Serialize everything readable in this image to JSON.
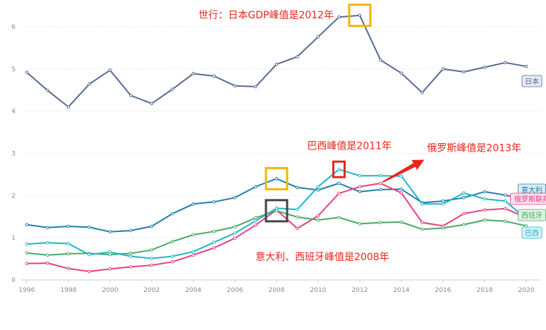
{
  "chart_data": {
    "type": "line",
    "x": [
      1996,
      1997,
      1998,
      1999,
      2000,
      2001,
      2002,
      2003,
      2004,
      2005,
      2006,
      2007,
      2008,
      2009,
      2010,
      2011,
      2012,
      2013,
      2014,
      2015,
      2016,
      2017,
      2018,
      2019,
      2020
    ],
    "x_tick_labels": [
      "1996",
      "1998",
      "2000",
      "2002",
      "2004",
      "2006",
      "2008",
      "2010",
      "2012",
      "2014",
      "2016",
      "2018",
      "2020"
    ],
    "y_tick_labels": [
      "0",
      "1",
      "2",
      "3",
      "4",
      "5",
      "6"
    ],
    "ylim": [
      0,
      6.5
    ],
    "grid": true,
    "series": [
      {
        "name": "日本",
        "color": "#566a92",
        "values": [
          4.92,
          4.49,
          4.1,
          4.64,
          4.97,
          4.37,
          4.18,
          4.52,
          4.89,
          4.83,
          4.6,
          4.58,
          5.11,
          5.29,
          5.76,
          6.23,
          6.27,
          5.21,
          4.9,
          4.44,
          5.0,
          4.93,
          5.04,
          5.15,
          5.06
        ]
      },
      {
        "name": "意大利",
        "color": "#1f7fab",
        "values": [
          1.31,
          1.24,
          1.27,
          1.25,
          1.14,
          1.17,
          1.27,
          1.57,
          1.8,
          1.85,
          1.95,
          2.21,
          2.4,
          2.19,
          2.13,
          2.29,
          2.09,
          2.14,
          2.15,
          1.83,
          1.87,
          1.95,
          2.09,
          2.01,
          1.89
        ]
      },
      {
        "name": "俄罗斯联邦",
        "color": "#ea3e83",
        "values": [
          0.39,
          0.4,
          0.27,
          0.2,
          0.26,
          0.31,
          0.35,
          0.43,
          0.59,
          0.76,
          0.99,
          1.3,
          1.66,
          1.22,
          1.52,
          2.05,
          2.21,
          2.29,
          2.06,
          1.36,
          1.28,
          1.57,
          1.66,
          1.69,
          1.48
        ]
      },
      {
        "name": "西班牙",
        "color": "#47a863",
        "values": [
          0.64,
          0.59,
          0.62,
          0.63,
          0.6,
          0.63,
          0.71,
          0.91,
          1.07,
          1.15,
          1.26,
          1.47,
          1.64,
          1.49,
          1.42,
          1.48,
          1.33,
          1.36,
          1.37,
          1.2,
          1.23,
          1.31,
          1.42,
          1.39,
          1.28
        ]
      },
      {
        "name": "巴西",
        "color": "#1fb5cb",
        "values": [
          0.85,
          0.88,
          0.86,
          0.6,
          0.66,
          0.56,
          0.51,
          0.56,
          0.67,
          0.89,
          1.11,
          1.4,
          1.7,
          1.67,
          2.21,
          2.62,
          2.47,
          2.47,
          2.46,
          1.8,
          1.8,
          2.06,
          1.92,
          1.87,
          1.44
        ]
      }
    ],
    "annotations": [
      {
        "text": "世行：日本GDP峰值是2012年",
        "at_year": 2007.5,
        "at_value": 6.2,
        "color": "#e8251d"
      },
      {
        "text": "巴西峰值是2011年",
        "at_year": 2011.5,
        "at_value": 3.1,
        "color": "#e8251d"
      },
      {
        "text": "俄罗斯峰值是2013年",
        "at_year": 2017.5,
        "at_value": 3.05,
        "color": "#e8251d"
      },
      {
        "text": "意大利、西班牙峰值是2008年",
        "at_year": 2010.2,
        "at_value": 0.47,
        "color": "#e8251d"
      }
    ],
    "highlights": [
      {
        "year": 2012,
        "value": 6.27,
        "color": "#f4b400"
      },
      {
        "year": 2008,
        "value": 2.4,
        "color": "#f4b400"
      },
      {
        "year": 2011,
        "value": 2.62,
        "color": "#e8251d"
      },
      {
        "year": 2008,
        "value": 1.64,
        "color": "#444444"
      }
    ],
    "arrow": {
      "from_year": 2013.1,
      "from_value": 2.32,
      "to_year": 2015.1,
      "to_value": 2.85,
      "color": "#e8251d"
    }
  }
}
